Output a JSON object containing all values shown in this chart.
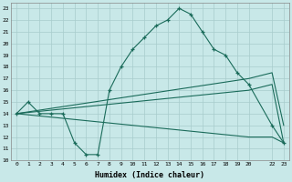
{
  "bg_color": "#c8e8e8",
  "grid_color": "#a8cccc",
  "line_color": "#1a6b5a",
  "xlabel": "Humidex (Indice chaleur)",
  "xlim": [
    -0.5,
    23.5
  ],
  "ylim": [
    10,
    23.5
  ],
  "xticks": [
    0,
    1,
    2,
    3,
    4,
    5,
    6,
    7,
    8,
    9,
    10,
    11,
    12,
    13,
    14,
    15,
    16,
    17,
    18,
    19,
    20,
    22,
    23
  ],
  "yticks": [
    10,
    11,
    12,
    13,
    14,
    15,
    16,
    17,
    18,
    19,
    20,
    21,
    22,
    23
  ],
  "line1_x": [
    0,
    1,
    2,
    3,
    4,
    5,
    6,
    7,
    8,
    9,
    10,
    11,
    12,
    13,
    14,
    15,
    16,
    17,
    18,
    19,
    20,
    22,
    23
  ],
  "line1_y": [
    14,
    15,
    14,
    14,
    14,
    11.5,
    10.5,
    10.5,
    16,
    18,
    19.5,
    20.5,
    21.5,
    22,
    23,
    22.5,
    21,
    19.5,
    19,
    17.5,
    16.5,
    13,
    11.5
  ],
  "line2_x": [
    0,
    20,
    22,
    23
  ],
  "line2_y": [
    14,
    17,
    17.5,
    13
  ],
  "line3_x": [
    0,
    20,
    22,
    23
  ],
  "line3_y": [
    14,
    16,
    16.5,
    11.5
  ],
  "line4_x": [
    0,
    20,
    22,
    23
  ],
  "line4_y": [
    14,
    12,
    12,
    11.5
  ]
}
